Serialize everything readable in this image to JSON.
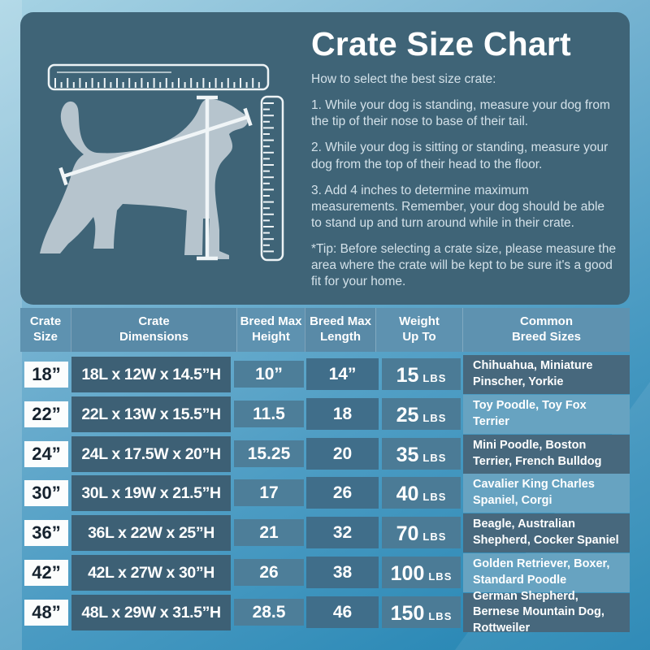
{
  "panel": {
    "title": "Crate Size Chart",
    "intro": "How to select the best size crate:",
    "steps": [
      "1. While your dog is standing, measure your dog from the tip of their nose to base of their tail.",
      "2. While your dog is sitting or standing, measure your dog from the top of their head to the floor.",
      "3. Add 4 inches to determine maximum measurements. Remember, your dog should be able to stand up and turn around while in their crate."
    ],
    "tip": "*Tip: Before selecting a crate size, please measure the area where the crate will be kept to be sure it's a good fit for your home.",
    "illustration_icons": [
      "horizontal-ruler-icon",
      "vertical-ruler-icon",
      "dog-silhouette",
      "height-measure-line",
      "length-measure-line"
    ]
  },
  "table": {
    "headers": [
      {
        "line1": "Crate",
        "line2": "Size"
      },
      {
        "line1": "Crate",
        "line2": "Dimensions"
      },
      {
        "line1": "Breed Max",
        "line2": "Height"
      },
      {
        "line1": "Breed Max",
        "line2": "Length"
      },
      {
        "line1": "Weight",
        "line2": "Up To"
      },
      {
        "line1": "Common",
        "line2": "Breed Sizes"
      }
    ],
    "rows": [
      {
        "size": "18”",
        "dimensions": "18L x 12W x 14.5”H",
        "height": "10”",
        "length": "14”",
        "weight": "15",
        "weight_unit": "LBS",
        "breeds": "Chihuahua, Miniature Pinscher, Yorkie"
      },
      {
        "size": "22”",
        "dimensions": "22L x 13W x 15.5”H",
        "height": "11.5",
        "length": "18",
        "weight": "25",
        "weight_unit": "LBS",
        "breeds": "Toy Poodle, Toy Fox Terrier"
      },
      {
        "size": "24”",
        "dimensions": "24L x 17.5W x 20”H",
        "height": "15.25",
        "length": "20",
        "weight": "35",
        "weight_unit": "LBS",
        "breeds": "Mini Poodle, Boston Terrier, French Bulldog"
      },
      {
        "size": "30”",
        "dimensions": "30L x 19W x 21.5”H",
        "height": "17",
        "length": "26",
        "weight": "40",
        "weight_unit": "LBS",
        "breeds": "Cavalier King Charles Spaniel, Corgi"
      },
      {
        "size": "36”",
        "dimensions": "36L x 22W x 25”H",
        "height": "21",
        "length": "32",
        "weight": "70",
        "weight_unit": "LBS",
        "breeds": "Beagle, Australian Shepherd, Cocker Spaniel"
      },
      {
        "size": "42”",
        "dimensions": "42L x 27W x 30”H",
        "height": "26",
        "length": "38",
        "weight": "100",
        "weight_unit": "LBS",
        "breeds": "Golden Retriever, Boxer, Standard Poodle"
      },
      {
        "size": "48”",
        "dimensions": "48L x 29W x 31.5”H",
        "height": "28.5",
        "length": "46",
        "weight": "150",
        "weight_unit": "LBS",
        "breeds": "German Shepherd, Bernese Mountain Dog, Rottweiler"
      }
    ]
  },
  "colors": {
    "background_top": "#a6d3e4",
    "background_bottom": "#1f82b1",
    "panel": "#3f6477",
    "dog_silhouette": "#b6c4cd",
    "measure_lines": "#f0f5f7",
    "header_bg": "#5e92b0",
    "size_box_bg": "#fbfdfd",
    "size_box_text": "#15222e",
    "dimensions_bg": "#3d6075",
    "height_bg": "#4d7e99",
    "length_bg": "#406e8a",
    "weight_bg": "#4b7b96",
    "breed_dark_bg": "#47687d",
    "breed_light_bg": "#67a3c1"
  },
  "chart_data": {
    "type": "table",
    "title": "Crate Size Chart",
    "columns": [
      "Crate Size",
      "Crate Dimensions",
      "Breed Max Height",
      "Breed Max Length",
      "Weight Up To",
      "Common Breed Sizes"
    ],
    "rows": [
      [
        "18”",
        "18L x 12W x 14.5”H",
        "10”",
        "14”",
        "15 LBS",
        "Chihuahua, Miniature Pinscher, Yorkie"
      ],
      [
        "22”",
        "22L x 13W x 15.5”H",
        "11.5",
        "18",
        "25 LBS",
        "Toy Poodle, Toy Fox Terrier"
      ],
      [
        "24”",
        "24L x 17.5W x 20”H",
        "15.25",
        "20",
        "35 LBS",
        "Mini Poodle, Boston Terrier, French Bulldog"
      ],
      [
        "30”",
        "30L x 19W x 21.5”H",
        "17",
        "26",
        "40 LBS",
        "Cavalier King Charles Spaniel, Corgi"
      ],
      [
        "36”",
        "36L x 22W x 25”H",
        "21",
        "32",
        "70 LBS",
        "Beagle, Australian Shepherd, Cocker Spaniel"
      ],
      [
        "42”",
        "42L x 27W x 30”H",
        "26",
        "38",
        "100 LBS",
        "Golden Retriever, Boxer, Standard Poodle"
      ],
      [
        "48”",
        "48L x 29W x 31.5”H",
        "28.5",
        "46",
        "150 LBS",
        "German Shepherd, Bernese Mountain Dog, Rottweiler"
      ]
    ]
  }
}
